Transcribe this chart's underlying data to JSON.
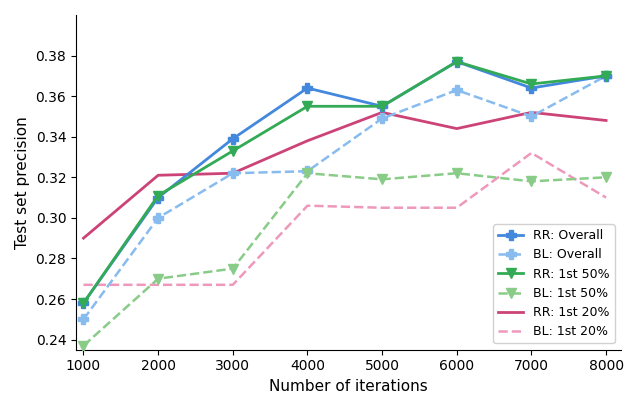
{
  "x": [
    1000,
    2000,
    3000,
    4000,
    5000,
    6000,
    7000,
    8000
  ],
  "rr_overall": [
    0.258,
    0.31,
    0.339,
    0.364,
    0.355,
    0.377,
    0.364,
    0.37
  ],
  "bl_overall": [
    0.25,
    0.3,
    0.322,
    0.323,
    0.349,
    0.363,
    0.35,
    0.37
  ],
  "rr_1st50": [
    0.258,
    0.311,
    0.333,
    0.355,
    0.355,
    0.377,
    0.366,
    0.37
  ],
  "bl_1st50": [
    0.237,
    0.27,
    0.275,
    0.322,
    0.319,
    0.322,
    0.318,
    0.32
  ],
  "rr_1st20": [
    0.29,
    0.321,
    0.322,
    0.338,
    0.352,
    0.344,
    0.352,
    0.348
  ],
  "bl_1st20": [
    0.267,
    0.267,
    0.267,
    0.306,
    0.305,
    0.305,
    0.332,
    0.31
  ],
  "color_blue": "#4488DD",
  "color_blue_light": "#88BBEE",
  "color_green": "#33AA55",
  "color_green_light": "#88CC88",
  "color_pink": "#CC4477",
  "color_pink_light": "#EE99BB",
  "xlabel": "Number of iterations",
  "ylabel": "Test set precision",
  "xlim": [
    900,
    8200
  ],
  "ylim": [
    0.235,
    0.4
  ],
  "yticks": [
    0.24,
    0.26,
    0.28,
    0.3,
    0.32,
    0.34,
    0.36,
    0.38
  ],
  "xticks": [
    1000,
    2000,
    3000,
    4000,
    5000,
    6000,
    7000,
    8000
  ],
  "legend_labels": [
    "RR: Overall",
    "BL: Overall",
    "RR: 1st 50%",
    "BL: 1st 50%",
    "RR: 1st 20%",
    "BL: 1st 20%"
  ]
}
